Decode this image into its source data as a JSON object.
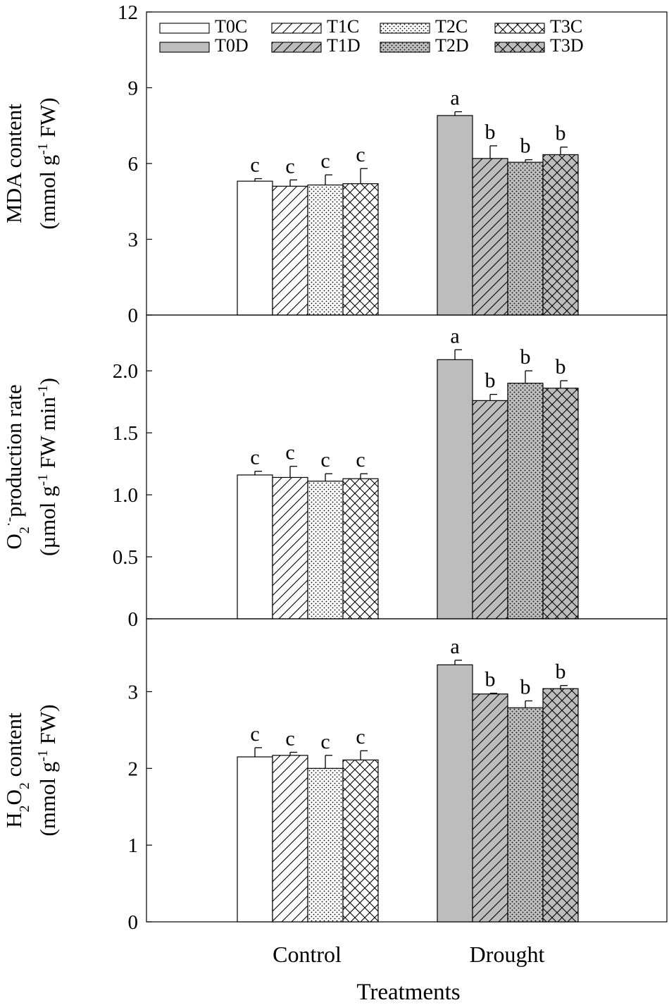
{
  "chart_data": {
    "type": "bar",
    "xlabel": "Treatments",
    "categories": [
      "Control",
      "Drought"
    ],
    "legend": {
      "placement": "top-left",
      "entries": [
        {
          "name": "T0C",
          "fill": "#ffffff",
          "pattern": "none"
        },
        {
          "name": "T1C",
          "fill": "#ffffff",
          "pattern": "diagonal"
        },
        {
          "name": "T2C",
          "fill": "#ffffff",
          "pattern": "dots"
        },
        {
          "name": "T3C",
          "fill": "#ffffff",
          "pattern": "crosshatch"
        },
        {
          "name": "T0D",
          "fill": "#bdbdbd",
          "pattern": "none"
        },
        {
          "name": "T1D",
          "fill": "#bdbdbd",
          "pattern": "diagonal"
        },
        {
          "name": "T2D",
          "fill": "#bdbdbd",
          "pattern": "dots"
        },
        {
          "name": "T3D",
          "fill": "#bdbdbd",
          "pattern": "crosshatch"
        }
      ]
    },
    "panels": [
      {
        "id": "mda",
        "ylabel_line1": "MDA content",
        "ylabel_line2": "(mmol g-1 FW)",
        "ylim": [
          0,
          12
        ],
        "yticks": [
          "0",
          "3",
          "6",
          "9",
          "12"
        ],
        "tick_values": [
          0,
          3,
          6,
          9,
          12
        ],
        "groups": [
          {
            "category": "Control",
            "values": [
              5.3,
              5.1,
              5.15,
              5.2
            ],
            "errors": [
              0.1,
              0.25,
              0.4,
              0.6
            ],
            "letters": [
              "c",
              "c",
              "c",
              "c"
            ]
          },
          {
            "category": "Drought",
            "values": [
              7.9,
              6.2,
              6.05,
              6.35
            ],
            "errors": [
              0.15,
              0.5,
              0.1,
              0.3
            ],
            "letters": [
              "a",
              "b",
              "b",
              "b"
            ]
          }
        ]
      },
      {
        "id": "o2",
        "ylabel_line1": "O2·- production rate",
        "ylabel_line2": "(µmol g-1 FW min-1)",
        "ylim": [
          0,
          2.45
        ],
        "yticks": [
          "0",
          "0.5",
          "1.0",
          "1.5",
          "2.0"
        ],
        "tick_values": [
          0,
          0.5,
          1.0,
          1.5,
          2.0
        ],
        "groups": [
          {
            "category": "Control",
            "values": [
              1.16,
              1.14,
              1.11,
              1.13
            ],
            "errors": [
              0.03,
              0.09,
              0.06,
              0.04
            ],
            "letters": [
              "c",
              "c",
              "c",
              "c"
            ]
          },
          {
            "category": "Drought",
            "values": [
              2.09,
              1.76,
              1.9,
              1.86
            ],
            "errors": [
              0.08,
              0.05,
              0.1,
              0.06
            ],
            "letters": [
              "a",
              "b",
              "b",
              "b"
            ]
          }
        ]
      },
      {
        "id": "h2o2",
        "ylabel_line1": "H2O2 content",
        "ylabel_line2": "(mmol g-1 FW)",
        "ylim": [
          0,
          3.95
        ],
        "yticks": [
          "0",
          "1",
          "2",
          "3"
        ],
        "tick_values": [
          0,
          1,
          2,
          3
        ],
        "groups": [
          {
            "category": "Control",
            "values": [
              2.15,
              2.17,
              2.0,
              2.11
            ],
            "errors": [
              0.12,
              0.04,
              0.17,
              0.12
            ],
            "letters": [
              "c",
              "c",
              "c",
              "c"
            ]
          },
          {
            "category": "Drought",
            "values": [
              3.35,
              2.97,
              2.79,
              3.04
            ],
            "errors": [
              0.06,
              0.01,
              0.09,
              0.04
            ],
            "letters": [
              "a",
              "b",
              "b",
              "b"
            ]
          }
        ]
      }
    ]
  }
}
